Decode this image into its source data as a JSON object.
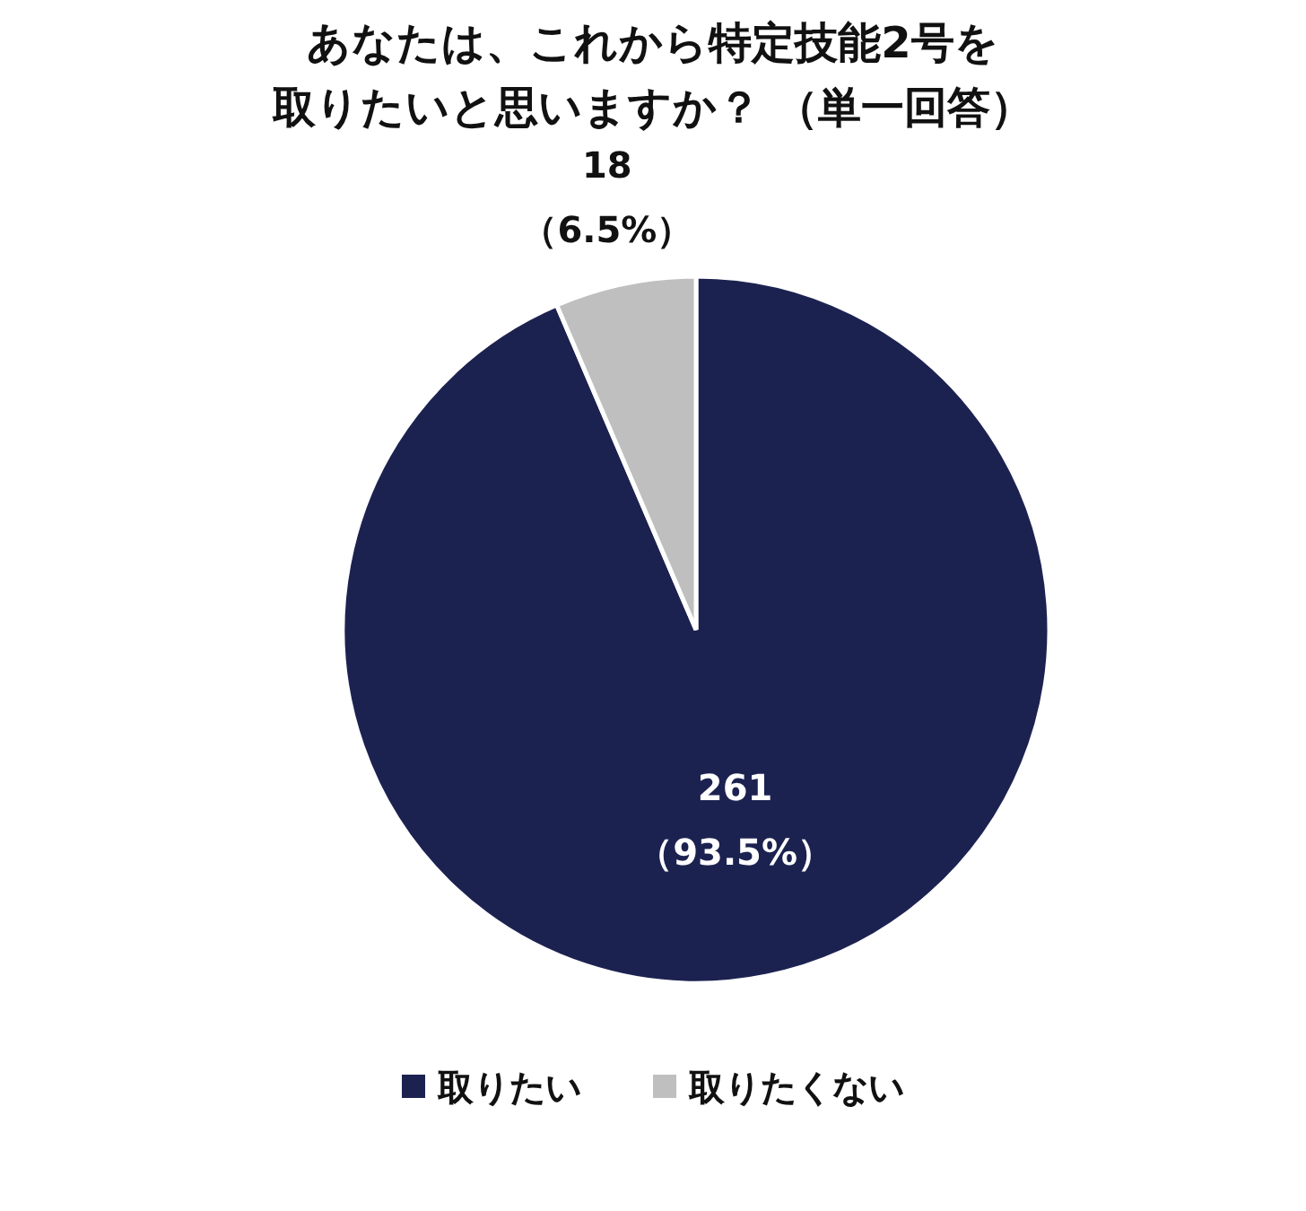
{
  "chart_data": {
    "type": "pie",
    "title": "あなたは、これから特定技能2号を取りたいと思いますか？ （単一回答）",
    "categories": [
      "取りたい",
      "取りたくない"
    ],
    "values": [
      261,
      18
    ],
    "colors": [
      "#1c2250",
      "#bfbfbf"
    ],
    "value_labels": [
      "261\n（93.5%）",
      "18\n（6.5%）"
    ],
    "legend": "bottom"
  }
}
